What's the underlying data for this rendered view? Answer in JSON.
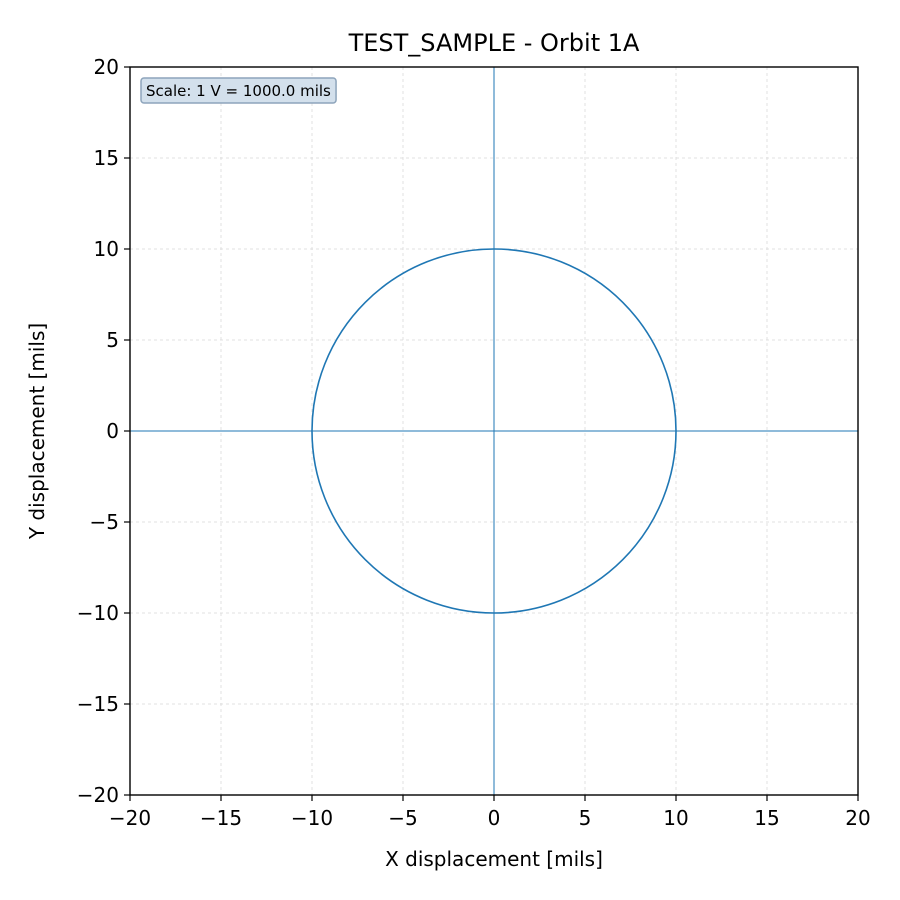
{
  "chart_data": {
    "type": "line",
    "title": "TEST_SAMPLE - Orbit 1A",
    "xlabel": "X displacement [mils]",
    "ylabel": "Y displacement [mils]",
    "xlim": [
      -20,
      20
    ],
    "ylim": [
      -20,
      20
    ],
    "x_ticks": [
      -20,
      -15,
      -10,
      -5,
      0,
      5,
      10,
      15,
      20
    ],
    "y_ticks": [
      -20,
      -15,
      -10,
      -5,
      0,
      5,
      10,
      15,
      20
    ],
    "x_tick_labels": [
      "−20",
      "−15",
      "−10",
      "−5",
      "0",
      "5",
      "10",
      "15",
      "20"
    ],
    "y_tick_labels": [
      "−20",
      "−15",
      "−10",
      "−5",
      "0",
      "5",
      "10",
      "15",
      "20"
    ],
    "grid": true,
    "reference_lines": {
      "x": 0,
      "y": 0
    },
    "annotation": {
      "text": "Scale: 1 V = 1000.0 mils",
      "placement": "top-left"
    },
    "series": [
      {
        "shape": "circle",
        "center": [
          0,
          0
        ],
        "radius": 10,
        "color": "#1f77b4"
      }
    ]
  },
  "colors": {
    "series": "#1f77b4",
    "grid": "#d9d9d9",
    "annotation_fill": "#d3e0ec",
    "annotation_border": "#8da4bb"
  }
}
